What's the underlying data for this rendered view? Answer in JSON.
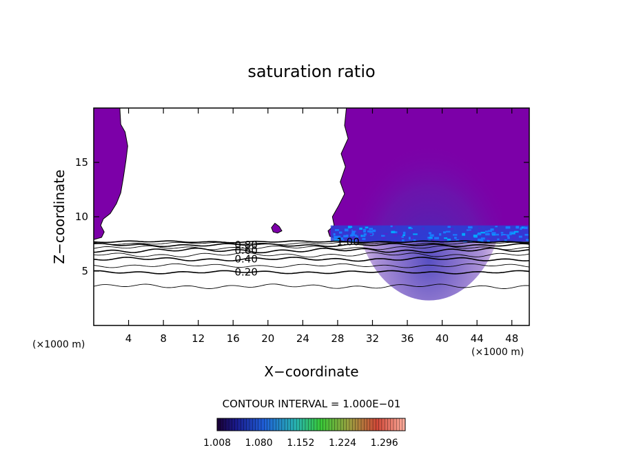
{
  "chart_data": {
    "type": "contour",
    "title": "saturation ratio",
    "xlabel": "X−coordinate",
    "ylabel": "Z−coordinate",
    "x_unit": "(×1000 m)",
    "z_unit": "(×1000 m)",
    "xlim": [
      0,
      50
    ],
    "ylim": [
      0,
      20
    ],
    "x_ticks": [
      4,
      8,
      12,
      16,
      20,
      24,
      28,
      32,
      36,
      40,
      44,
      48
    ],
    "y_ticks": [
      5,
      10,
      15
    ],
    "contour_interval_text": "CONTOUR INTERVAL = 1.000E−01",
    "contours": [
      {
        "level": 0.1,
        "z": 3.6,
        "amp": 0.12,
        "label": ""
      },
      {
        "level": 0.2,
        "z": 4.9,
        "amp": 0.08,
        "label": "0.20"
      },
      {
        "level": 0.3,
        "z": 5.5,
        "amp": 0.1,
        "label": ""
      },
      {
        "level": 0.4,
        "z": 6.1,
        "amp": 0.1,
        "label": "0.40"
      },
      {
        "level": 0.5,
        "z": 6.5,
        "amp": 0.12,
        "label": ""
      },
      {
        "level": 0.6,
        "z": 6.9,
        "amp": 0.12,
        "label": "0.60"
      },
      {
        "level": 0.7,
        "z": 7.15,
        "amp": 0.1,
        "label": ""
      },
      {
        "level": 0.8,
        "z": 7.4,
        "amp": 0.08,
        "label": "0.80"
      },
      {
        "level": 0.9,
        "z": 7.55,
        "amp": 0.06,
        "label": ""
      },
      {
        "level": 1.0,
        "z": 7.7,
        "amp": 0.05,
        "label": "1.00"
      }
    ],
    "colorbar": {
      "ticks": [
        "1.008",
        "1.080",
        "1.152",
        "1.224",
        "1.296"
      ],
      "min": 1.008,
      "max": 1.332
    },
    "supersaturated_region_color": "#7c00a8"
  }
}
